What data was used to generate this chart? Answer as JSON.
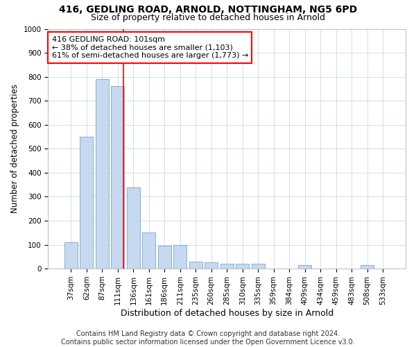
{
  "title": "416, GEDLING ROAD, ARNOLD, NOTTINGHAM, NG5 6PD",
  "subtitle": "Size of property relative to detached houses in Arnold",
  "xlabel": "Distribution of detached houses by size in Arnold",
  "ylabel": "Number of detached properties",
  "footer_line1": "Contains HM Land Registry data © Crown copyright and database right 2024.",
  "footer_line2": "Contains public sector information licensed under the Open Government Licence v3.0.",
  "categories": [
    "37sqm",
    "62sqm",
    "87sqm",
    "111sqm",
    "136sqm",
    "161sqm",
    "186sqm",
    "211sqm",
    "235sqm",
    "260sqm",
    "285sqm",
    "310sqm",
    "335sqm",
    "359sqm",
    "384sqm",
    "409sqm",
    "434sqm",
    "459sqm",
    "483sqm",
    "508sqm",
    "533sqm"
  ],
  "values": [
    110,
    550,
    790,
    760,
    340,
    150,
    95,
    100,
    30,
    25,
    20,
    20,
    20,
    0,
    0,
    15,
    0,
    0,
    0,
    15,
    0
  ],
  "bar_color": "#c6d9f0",
  "bar_edge_color": "#7aa4c8",
  "vline_index": 3,
  "vline_color": "red",
  "annotation_text": "416 GEDLING ROAD: 101sqm\n← 38% of detached houses are smaller (1,103)\n61% of semi-detached houses are larger (1,773) →",
  "annotation_box_color": "red",
  "annotation_text_color": "black",
  "annotation_fontsize": 8,
  "ylim": [
    0,
    1000
  ],
  "yticks": [
    0,
    100,
    200,
    300,
    400,
    500,
    600,
    700,
    800,
    900,
    1000
  ],
  "title_fontsize": 10,
  "subtitle_fontsize": 9,
  "xlabel_fontsize": 9,
  "ylabel_fontsize": 8.5,
  "tick_fontsize": 7.5,
  "footer_fontsize": 7,
  "bg_color": "#ffffff",
  "grid_color": "#ccd9ea"
}
